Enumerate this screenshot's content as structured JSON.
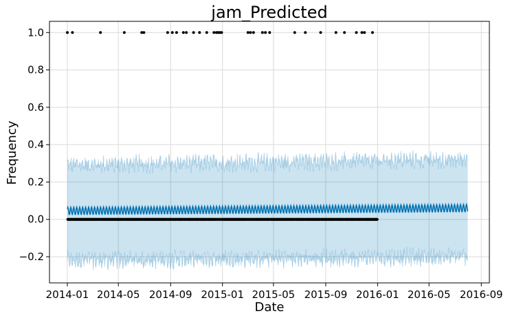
{
  "chart_data": {
    "type": "scatter",
    "title": "jam_Predicted",
    "xlabel": "Date",
    "ylabel": "Frequency",
    "x_axis": {
      "kind": "date",
      "range": [
        "2013-11-20",
        "2016-09-20"
      ],
      "tick_labels": [
        "2014-01",
        "2014-05",
        "2014-09",
        "2015-01",
        "2015-05",
        "2015-09",
        "2016-01",
        "2016-05",
        "2016-09"
      ]
    },
    "y_axis": {
      "range": [
        -0.34,
        1.06
      ],
      "tick_values": [
        -0.2,
        0.0,
        0.2,
        0.4,
        0.6,
        0.8,
        1.0
      ],
      "tick_labels": [
        "−0.2",
        "0.0",
        "0.2",
        "0.4",
        "0.6",
        "0.8",
        "1.0"
      ]
    },
    "grid": true,
    "colors": {
      "forecast_line": "#0072b2",
      "uncertainty_band": "#0072b2",
      "observed_points": "#000000",
      "grid": "#d9d9d9"
    },
    "observed": {
      "date_range": [
        "2014-01-01",
        "2015-12-31"
      ],
      "baseline_value": 0.0,
      "value_1_dates": [
        "2014-01-01",
        "2014-01-13",
        "2014-03-20",
        "2014-05-15",
        "2014-06-25",
        "2014-06-30",
        "2014-08-25",
        "2014-09-05",
        "2014-09-15",
        "2014-10-01",
        "2014-10-08",
        "2014-10-25",
        "2014-11-08",
        "2014-11-25",
        "2014-12-12",
        "2014-12-18",
        "2014-12-22",
        "2014-12-26",
        "2014-12-30",
        "2015-03-02",
        "2015-03-08",
        "2015-03-15",
        "2015-04-05",
        "2015-04-12",
        "2015-04-22",
        "2015-06-20",
        "2015-07-15",
        "2015-08-20",
        "2015-09-25",
        "2015-10-15",
        "2015-11-12",
        "2015-11-25",
        "2015-12-01",
        "2015-12-20"
      ]
    },
    "forecast": {
      "date_range": [
        "2014-01-01",
        "2016-07-31"
      ],
      "trend_start": 0.045,
      "trend_end": 0.06,
      "weekly_amplitude": 0.02,
      "upper_bound": [
        0.29,
        0.32
      ],
      "lower_bound": [
        -0.22,
        -0.2
      ]
    }
  }
}
